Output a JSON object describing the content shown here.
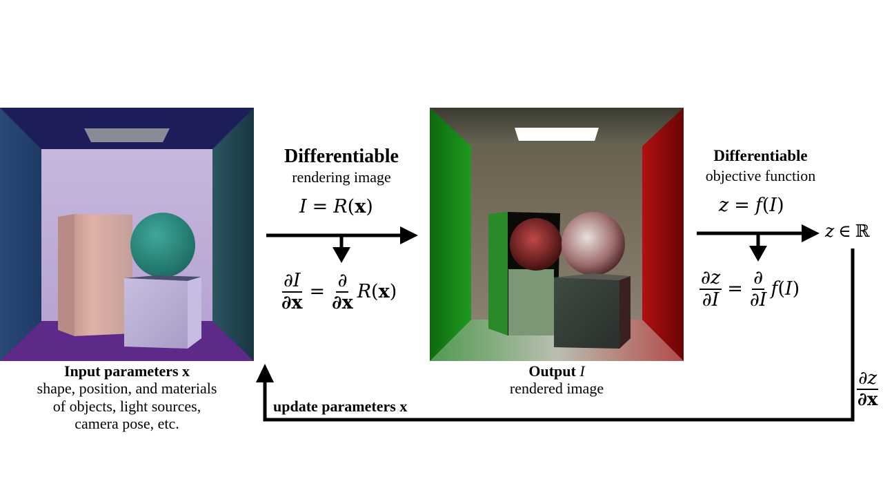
{
  "left_panel": {
    "title": "Input parameters",
    "title_var": "x",
    "lines": [
      "shape, position, and materials",
      "of objects, light sources,",
      "camera pose, etc."
    ]
  },
  "rendering": {
    "title": "Differentiable",
    "subtitle": "rendering image",
    "forward": {
      "lhs": "I",
      "rhs_func": "R",
      "arg": "x"
    },
    "gradient": {
      "num": "∂I",
      "den": "∂x",
      "op_num": "∂",
      "op_den": "∂x",
      "func": "R",
      "arg": "x"
    }
  },
  "middle_panel": {
    "title": "Output",
    "title_var": "I",
    "subtitle": "rendered image"
  },
  "objective": {
    "title": "Differentiable",
    "subtitle": "objective function",
    "forward": {
      "lhs": "z",
      "rhs_func": "f",
      "arg": "I"
    },
    "gradient": {
      "num": "∂z",
      "den": "∂I",
      "op_num": "∂",
      "op_den": "∂I",
      "func": "f",
      "arg": "I"
    },
    "output": {
      "var": "z",
      "symbol": "∈",
      "set": "ℝ"
    }
  },
  "feedback": {
    "label": "update parameters",
    "label_var": "x",
    "grad": {
      "num": "∂z",
      "den": "∂x"
    }
  }
}
